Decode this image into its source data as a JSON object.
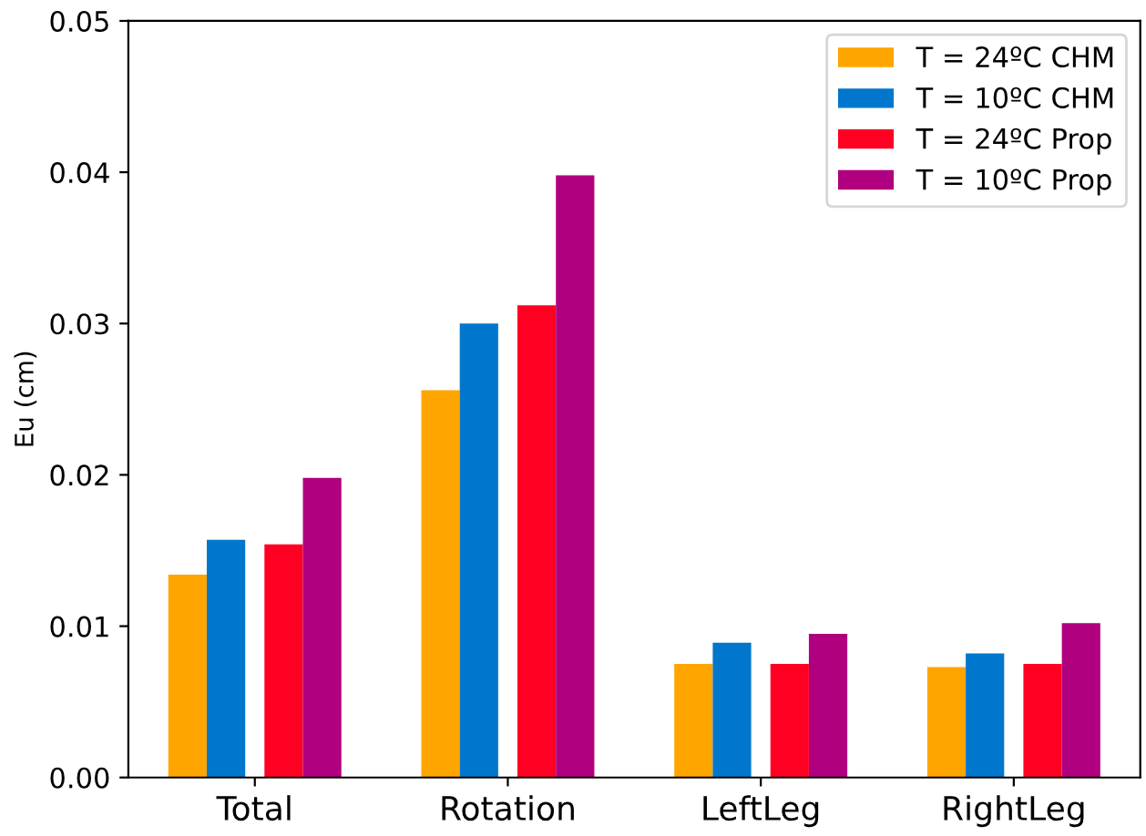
{
  "chart_data": {
    "type": "bar",
    "ylabel": "Eu (cm)",
    "categories": [
      "Total",
      "Rotation",
      "LeftLeg",
      "RightLeg"
    ],
    "series": [
      {
        "name": "T = 24ºC CHM",
        "color": "#ffa500",
        "values": [
          0.0134,
          0.0256,
          0.0075,
          0.0073
        ]
      },
      {
        "name": "T = 10ºC CHM",
        "color": "#0077cc",
        "values": [
          0.0157,
          0.03,
          0.0089,
          0.0082
        ]
      },
      {
        "name": "T = 24ºC Prop",
        "color": "#ff0022",
        "values": [
          0.0154,
          0.0312,
          0.0075,
          0.0075
        ]
      },
      {
        "name": "T = 10ºC Prop",
        "color": "#b0007f",
        "values": [
          0.0198,
          0.0398,
          0.0095,
          0.0102
        ]
      }
    ],
    "ylim": [
      0,
      0.05
    ],
    "yticks": [
      {
        "value": 0,
        "label": "0.00"
      },
      {
        "value": 0.01,
        "label": "0.01"
      },
      {
        "value": 0.02,
        "label": "0.02"
      },
      {
        "value": 0.03,
        "label": "0.03"
      },
      {
        "value": 0.04,
        "label": "0.04"
      },
      {
        "value": 0.05,
        "label": "0.05"
      }
    ],
    "legend": "top right",
    "grid": false
  }
}
